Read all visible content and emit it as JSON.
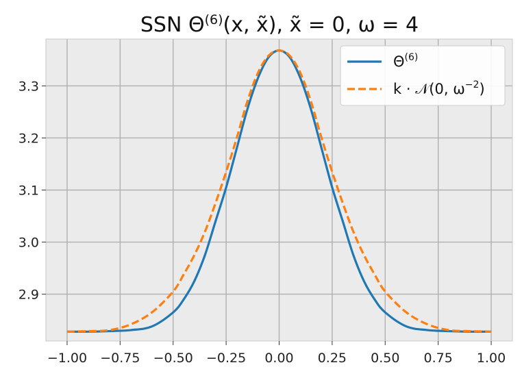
{
  "chart_data": {
    "type": "line",
    "title_parts": {
      "a": "SSN Θ",
      "sup": "(6)",
      "b": "(x, x̃), x̃ = 0, ω = 4"
    },
    "xlim": [
      -1.1,
      1.1
    ],
    "ylim": [
      2.81,
      3.39
    ],
    "x_ticks": [
      -1.0,
      -0.75,
      -0.5,
      -0.25,
      0.0,
      0.25,
      0.5,
      0.75,
      1.0
    ],
    "x_tick_labels": [
      "−1.00",
      "−0.75",
      "−0.50",
      "−0.25",
      "0.00",
      "0.25",
      "0.50",
      "0.75",
      "1.00"
    ],
    "y_ticks": [
      2.9,
      3.0,
      3.1,
      3.2,
      3.3
    ],
    "y_tick_labels": [
      "2.9",
      "3.0",
      "3.1",
      "3.2",
      "3.3"
    ],
    "grid": true,
    "legend_position": "top-right",
    "legend": [
      {
        "label_main": "Θ",
        "label_sup": "(6)",
        "label_rest": "",
        "color": "#1f77b4",
        "style": "solid"
      },
      {
        "label_main": "k · 𝒩(0, ω",
        "label_sup": "−2",
        "label_rest": ")",
        "color": "#ff7f0e",
        "style": "dashed"
      }
    ],
    "series": [
      {
        "color": "#1f77b4",
        "style": "solid",
        "x": [
          -1.0,
          -0.9,
          -0.8,
          -0.7,
          -0.6,
          -0.5,
          -0.45,
          -0.4,
          -0.35,
          -0.3,
          -0.25,
          -0.2,
          -0.15,
          -0.1,
          -0.05,
          0.0,
          0.05,
          0.1,
          0.15,
          0.2,
          0.25,
          0.3,
          0.35,
          0.4,
          0.45,
          0.5,
          0.6,
          0.7,
          0.8,
          0.9,
          1.0
        ],
        "y": [
          2.828,
          2.828,
          2.829,
          2.831,
          2.838,
          2.865,
          2.89,
          2.925,
          2.975,
          3.04,
          3.105,
          3.18,
          3.255,
          3.315,
          3.355,
          3.368,
          3.355,
          3.315,
          3.255,
          3.18,
          3.105,
          3.04,
          2.975,
          2.925,
          2.89,
          2.865,
          2.838,
          2.831,
          2.829,
          2.828,
          2.828
        ]
      },
      {
        "color": "#ff7f0e",
        "style": "dashed",
        "x": [
          -1.0,
          -0.9,
          -0.8,
          -0.7,
          -0.6,
          -0.5,
          -0.45,
          -0.4,
          -0.35,
          -0.3,
          -0.25,
          -0.2,
          -0.15,
          -0.1,
          -0.05,
          0.0,
          0.05,
          0.1,
          0.15,
          0.2,
          0.25,
          0.3,
          0.35,
          0.4,
          0.45,
          0.5,
          0.6,
          0.7,
          0.8,
          0.9,
          1.0
        ],
        "y": [
          2.828,
          2.829,
          2.831,
          2.842,
          2.865,
          2.905,
          2.938,
          2.975,
          3.02,
          3.075,
          3.135,
          3.2,
          3.27,
          3.325,
          3.358,
          3.368,
          3.358,
          3.325,
          3.27,
          3.2,
          3.135,
          3.075,
          3.02,
          2.975,
          2.938,
          2.905,
          2.865,
          2.842,
          2.831,
          2.829,
          2.828
        ]
      }
    ]
  }
}
